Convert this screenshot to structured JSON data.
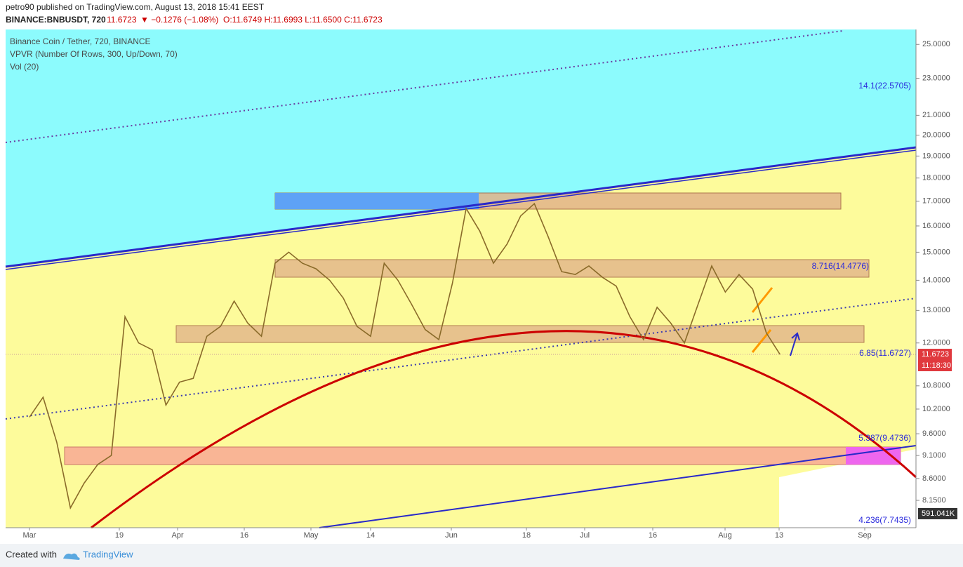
{
  "header": {
    "publisher": "petro90 published on TradingView.com, August 13, 2018 15:41 EEST",
    "symbol": "BINANCE:BNBUSDT, 720",
    "last": "11.6723",
    "change": "▼ −0.1276 (−1.08%)",
    "ohlc": "O:11.6749 H:11.6993 L:11.6500 C:11.6723"
  },
  "chart_data": {
    "type": "line",
    "legend": [
      "Binance Coin / Tether, 720, BINANCE",
      "VPVR (Number Of Rows, 300, Up/Down, 70)",
      "Vol (20)"
    ],
    "log_scale": true,
    "xtick_labels": [
      "Mar",
      "19",
      "Apr",
      "16",
      "May",
      "14",
      "Jun",
      "18",
      "Jul",
      "16",
      "Aug",
      "13",
      "Sep"
    ],
    "series": [
      {
        "color": "#8a6b2a",
        "values": [
          10.0,
          10.5,
          9.4,
          8.0,
          8.5,
          8.9,
          9.1,
          12.8,
          12.0,
          11.8,
          10.3,
          10.9,
          11.0,
          12.2,
          12.5,
          13.3,
          12.6,
          12.2,
          14.6,
          15.0,
          14.6,
          14.4,
          14.0,
          13.4,
          12.5,
          12.2,
          14.6,
          14.0,
          13.2,
          12.4,
          12.1,
          13.9,
          16.7,
          15.8,
          14.6,
          15.3,
          16.4,
          16.9,
          15.6,
          14.3,
          14.2,
          14.5,
          14.1,
          13.8,
          12.8,
          12.1,
          13.1,
          12.6,
          12.0,
          13.2,
          14.5,
          13.6,
          14.2,
          13.7,
          12.3,
          11.67
        ]
      }
    ],
    "ylim": [
      7.62,
      25.8
    ],
    "yticks": [
      {
        "value": 25,
        "label": "25.0000"
      },
      {
        "value": 23,
        "label": "23.0000"
      },
      {
        "value": 21,
        "label": "21.0000"
      },
      {
        "value": 20,
        "label": "20.0000"
      },
      {
        "value": 19,
        "label": "19.0000"
      },
      {
        "value": 18,
        "label": "18.0000"
      },
      {
        "value": 17,
        "label": "17.0000"
      },
      {
        "value": 16,
        "label": "16.0000"
      },
      {
        "value": 15,
        "label": "15.0000"
      },
      {
        "value": 14,
        "label": "14.0000"
      },
      {
        "value": 13,
        "label": "13.0000"
      },
      {
        "value": 12,
        "label": "12.0000"
      },
      {
        "value": 10.8,
        "label": "10.8000"
      },
      {
        "value": 10.2,
        "label": "10.2000"
      },
      {
        "value": 9.6,
        "label": "9.6000"
      },
      {
        "value": 9.1,
        "label": "9.1000"
      },
      {
        "value": 8.6,
        "label": "8.6000"
      },
      {
        "value": 8.15,
        "label": "8.1500"
      }
    ],
    "annotations": [
      "14.1(22.5705)",
      "8.716(14.4776)",
      "6.85(11.6727)",
      "5.387(9.4736)",
      "4.236(7.7435)"
    ],
    "price_label": "11.6723",
    "countdown": "11:18:30",
    "volume_label": "591.041K"
  },
  "footer": {
    "created": "Created with",
    "brand": "TradingView"
  }
}
